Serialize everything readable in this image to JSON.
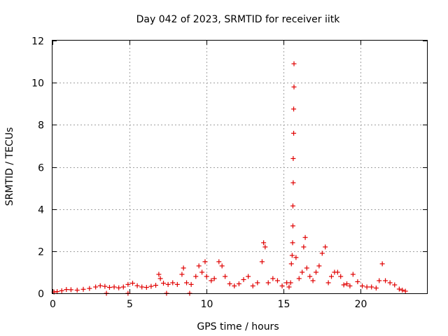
{
  "chart_data": {
    "type": "scatter",
    "title": "Day 042 of 2023, SRMTID for receiver iitk",
    "xlabel": "GPS time / hours",
    "ylabel": "SRMTID / TECUs",
    "xlim": [
      0,
      24.3
    ],
    "ylim": [
      0,
      12
    ],
    "xticks": [
      0,
      5,
      10,
      15,
      20
    ],
    "yticks": [
      0,
      2,
      4,
      6,
      8,
      10,
      12
    ],
    "grid": true,
    "marker": "+",
    "series": [
      {
        "name": "SRMTID",
        "color": "#e00000",
        "points": [
          [
            0.1,
            0.06
          ],
          [
            0.3,
            0.08
          ],
          [
            0.6,
            0.12
          ],
          [
            0.9,
            0.18
          ],
          [
            1.2,
            0.17
          ],
          [
            1.6,
            0.15
          ],
          [
            2.0,
            0.19
          ],
          [
            2.4,
            0.23
          ],
          [
            2.8,
            0.3
          ],
          [
            3.1,
            0.36
          ],
          [
            3.4,
            0.33
          ],
          [
            3.7,
            0.28
          ],
          [
            4.0,
            0.3
          ],
          [
            4.3,
            0.26
          ],
          [
            4.6,
            0.3
          ],
          [
            4.9,
            0.42
          ],
          [
            5.2,
            0.48
          ],
          [
            5.5,
            0.36
          ],
          [
            5.8,
            0.3
          ],
          [
            6.1,
            0.28
          ],
          [
            6.4,
            0.33
          ],
          [
            6.7,
            0.38
          ],
          [
            6.9,
            0.9
          ],
          [
            7.0,
            0.7
          ],
          [
            7.2,
            0.48
          ],
          [
            7.5,
            0.42
          ],
          [
            7.8,
            0.5
          ],
          [
            8.1,
            0.42
          ],
          [
            8.4,
            0.9
          ],
          [
            8.5,
            1.2
          ],
          [
            8.7,
            0.5
          ],
          [
            9.0,
            0.42
          ],
          [
            9.3,
            0.8
          ],
          [
            9.5,
            1.3
          ],
          [
            9.7,
            1.0
          ],
          [
            9.9,
            1.5
          ],
          [
            10.0,
            0.8
          ],
          [
            10.3,
            0.6
          ],
          [
            10.5,
            0.7
          ],
          [
            10.8,
            1.5
          ],
          [
            11.0,
            1.3
          ],
          [
            11.2,
            0.8
          ],
          [
            11.5,
            0.45
          ],
          [
            11.8,
            0.35
          ],
          [
            12.1,
            0.45
          ],
          [
            12.4,
            0.65
          ],
          [
            12.7,
            0.8
          ],
          [
            13.0,
            0.35
          ],
          [
            13.3,
            0.5
          ],
          [
            13.6,
            1.5
          ],
          [
            13.7,
            2.4
          ],
          [
            13.8,
            2.2
          ],
          [
            14.0,
            0.5
          ],
          [
            14.3,
            0.7
          ],
          [
            14.6,
            0.6
          ],
          [
            14.9,
            0.35
          ],
          [
            15.2,
            0.5
          ],
          [
            15.35,
            0.3
          ],
          [
            15.45,
            0.5
          ],
          [
            15.5,
            1.4
          ],
          [
            15.55,
            1.8
          ],
          [
            15.58,
            2.4
          ],
          [
            15.6,
            3.2
          ],
          [
            15.6,
            4.15
          ],
          [
            15.62,
            5.25
          ],
          [
            15.62,
            6.4
          ],
          [
            15.65,
            7.6
          ],
          [
            15.65,
            8.75
          ],
          [
            15.67,
            9.8
          ],
          [
            15.67,
            10.9
          ],
          [
            15.8,
            1.7
          ],
          [
            16.0,
            0.7
          ],
          [
            16.2,
            1.0
          ],
          [
            16.3,
            2.2
          ],
          [
            16.4,
            2.65
          ],
          [
            16.5,
            1.2
          ],
          [
            16.7,
            0.8
          ],
          [
            16.9,
            0.6
          ],
          [
            17.1,
            1.0
          ],
          [
            17.3,
            1.3
          ],
          [
            17.5,
            1.9
          ],
          [
            17.7,
            2.2
          ],
          [
            17.9,
            0.5
          ],
          [
            18.1,
            0.8
          ],
          [
            18.3,
            1.0
          ],
          [
            18.5,
            1.0
          ],
          [
            18.7,
            0.8
          ],
          [
            18.9,
            0.4
          ],
          [
            19.1,
            0.45
          ],
          [
            19.3,
            0.35
          ],
          [
            19.5,
            0.9
          ],
          [
            19.8,
            0.55
          ],
          [
            20.1,
            0.35
          ],
          [
            20.4,
            0.3
          ],
          [
            20.7,
            0.3
          ],
          [
            21.0,
            0.25
          ],
          [
            21.2,
            0.6
          ],
          [
            21.4,
            1.4
          ],
          [
            21.6,
            0.6
          ],
          [
            21.9,
            0.5
          ],
          [
            22.2,
            0.4
          ],
          [
            22.5,
            0.2
          ],
          [
            22.7,
            0.15
          ],
          [
            22.9,
            0.1
          ],
          [
            3.5,
            0.0
          ],
          [
            4.9,
            0.0
          ],
          [
            7.4,
            0.0
          ],
          [
            8.9,
            0.0
          ]
        ]
      }
    ]
  }
}
